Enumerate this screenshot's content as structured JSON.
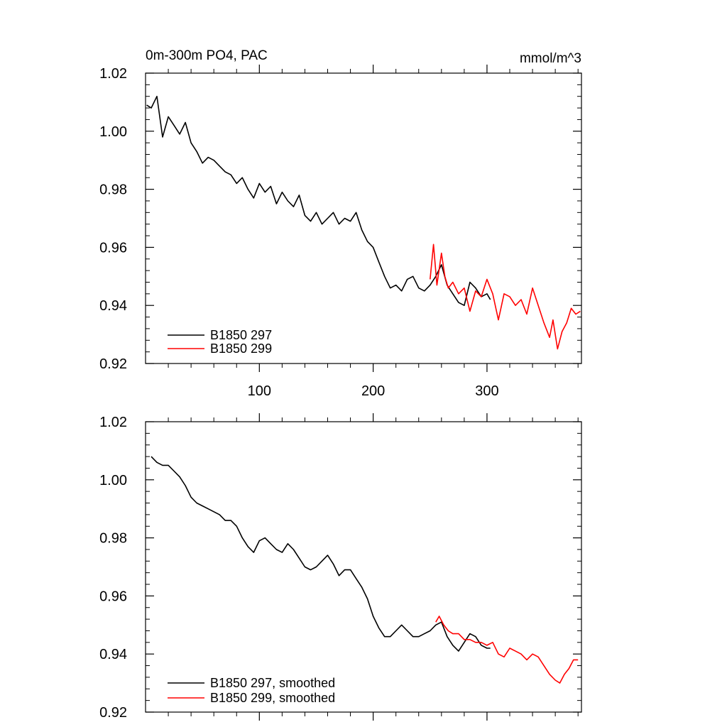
{
  "chart_data": [
    {
      "type": "line",
      "title": "0m-300m PO4, PAC",
      "units": "mmol/m^3",
      "xlim": [
        0,
        383
      ],
      "ylim": [
        0.92,
        1.02
      ],
      "x_ticks": [
        100,
        200,
        300
      ],
      "y_ticks": [
        0.92,
        0.94,
        0.96,
        0.98,
        1.0,
        1.02
      ],
      "y_tick_labels": [
        "0.92",
        "0.94",
        "0.96",
        "0.98",
        "1.00",
        "1.02"
      ],
      "x_tick_labels": [
        "100",
        "200",
        "300"
      ],
      "legend_position": "bottom-left",
      "series": [
        {
          "name": "B1850 297",
          "color": "#000000",
          "x": [
            1,
            5,
            10,
            15,
            20,
            25,
            30,
            35,
            40,
            45,
            50,
            55,
            60,
            65,
            70,
            75,
            80,
            85,
            90,
            95,
            100,
            105,
            110,
            115,
            120,
            125,
            130,
            135,
            140,
            145,
            150,
            155,
            160,
            165,
            170,
            175,
            180,
            185,
            190,
            195,
            200,
            205,
            210,
            215,
            220,
            225,
            230,
            235,
            240,
            245,
            250,
            255,
            260,
            265,
            270,
            275,
            280,
            285,
            290,
            295,
            300,
            303
          ],
          "y": [
            1.009,
            1.008,
            1.012,
            0.998,
            1.005,
            1.002,
            0.999,
            1.003,
            0.996,
            0.993,
            0.989,
            0.991,
            0.99,
            0.988,
            0.986,
            0.985,
            0.982,
            0.984,
            0.98,
            0.977,
            0.982,
            0.979,
            0.981,
            0.975,
            0.979,
            0.976,
            0.974,
            0.978,
            0.971,
            0.969,
            0.972,
            0.968,
            0.97,
            0.972,
            0.968,
            0.97,
            0.969,
            0.972,
            0.966,
            0.962,
            0.96,
            0.955,
            0.95,
            0.946,
            0.947,
            0.945,
            0.949,
            0.95,
            0.946,
            0.945,
            0.947,
            0.95,
            0.954,
            0.947,
            0.944,
            0.941,
            0.94,
            0.948,
            0.946,
            0.943,
            0.944,
            0.942
          ]
        },
        {
          "name": "B1850 299",
          "color": "#ff0000",
          "x": [
            250,
            253,
            256,
            260,
            263,
            266,
            270,
            275,
            280,
            285,
            290,
            295,
            300,
            305,
            310,
            315,
            320,
            325,
            330,
            335,
            340,
            345,
            350,
            355,
            358,
            362,
            366,
            370,
            374,
            378,
            382
          ],
          "y": [
            0.949,
            0.961,
            0.947,
            0.958,
            0.95,
            0.946,
            0.948,
            0.944,
            0.946,
            0.938,
            0.945,
            0.943,
            0.949,
            0.944,
            0.935,
            0.944,
            0.943,
            0.94,
            0.942,
            0.937,
            0.946,
            0.94,
            0.934,
            0.929,
            0.935,
            0.925,
            0.931,
            0.934,
            0.939,
            0.937,
            0.938
          ]
        }
      ]
    },
    {
      "type": "line",
      "xlim": [
        0,
        383
      ],
      "ylim": [
        0.92,
        1.02
      ],
      "y_ticks": [
        0.92,
        0.94,
        0.96,
        0.98,
        1.0,
        1.02
      ],
      "y_tick_labels": [
        "0.92",
        "0.94",
        "0.96",
        "0.98",
        "1.00",
        "1.02"
      ],
      "legend_position": "bottom-left",
      "series": [
        {
          "name": "B1850 297, smoothed",
          "color": "#000000",
          "x": [
            5,
            10,
            15,
            20,
            25,
            30,
            35,
            40,
            45,
            50,
            55,
            60,
            65,
            70,
            75,
            80,
            85,
            90,
            95,
            100,
            105,
            110,
            115,
            120,
            125,
            130,
            135,
            140,
            145,
            150,
            155,
            160,
            165,
            170,
            175,
            180,
            185,
            190,
            195,
            200,
            205,
            210,
            215,
            220,
            225,
            230,
            235,
            240,
            245,
            250,
            255,
            260,
            265,
            270,
            275,
            280,
            285,
            290,
            295,
            300,
            303
          ],
          "y": [
            1.008,
            1.006,
            1.005,
            1.005,
            1.003,
            1.001,
            0.998,
            0.994,
            0.992,
            0.991,
            0.99,
            0.989,
            0.988,
            0.986,
            0.986,
            0.984,
            0.98,
            0.977,
            0.975,
            0.979,
            0.98,
            0.978,
            0.976,
            0.975,
            0.978,
            0.976,
            0.973,
            0.97,
            0.969,
            0.97,
            0.972,
            0.974,
            0.971,
            0.967,
            0.969,
            0.969,
            0.966,
            0.963,
            0.959,
            0.953,
            0.949,
            0.946,
            0.946,
            0.948,
            0.95,
            0.948,
            0.946,
            0.946,
            0.947,
            0.948,
            0.95,
            0.951,
            0.946,
            0.943,
            0.941,
            0.944,
            0.947,
            0.946,
            0.943,
            0.942,
            0.942
          ]
        },
        {
          "name": "B1850 299, smoothed",
          "color": "#ff0000",
          "x": [
            255,
            258,
            262,
            266,
            270,
            275,
            280,
            285,
            290,
            295,
            300,
            305,
            310,
            315,
            320,
            325,
            330,
            335,
            340,
            345,
            350,
            355,
            360,
            364,
            368,
            372,
            376,
            380
          ],
          "y": [
            0.951,
            0.953,
            0.95,
            0.948,
            0.947,
            0.947,
            0.945,
            0.945,
            0.944,
            0.944,
            0.943,
            0.944,
            0.94,
            0.939,
            0.942,
            0.941,
            0.94,
            0.938,
            0.94,
            0.939,
            0.936,
            0.933,
            0.931,
            0.93,
            0.933,
            0.935,
            0.938,
            0.938
          ]
        }
      ]
    }
  ]
}
